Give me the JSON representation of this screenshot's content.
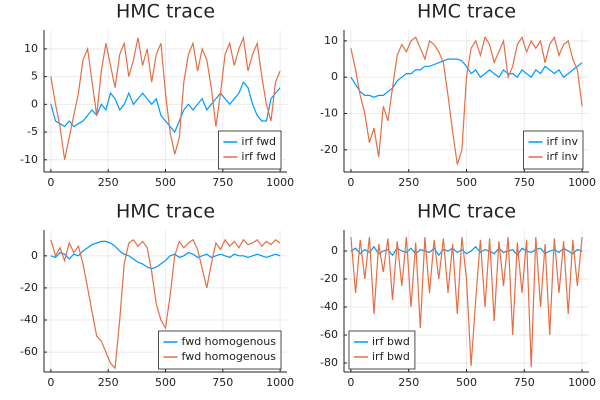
{
  "chart_data": [
    {
      "type": "line",
      "title": "HMC trace",
      "legend": "bottom-right",
      "grid": true,
      "x": [
        0,
        20,
        40,
        60,
        80,
        100,
        120,
        140,
        160,
        180,
        200,
        220,
        240,
        260,
        280,
        300,
        320,
        340,
        360,
        380,
        400,
        420,
        440,
        460,
        480,
        500,
        520,
        540,
        560,
        580,
        600,
        620,
        640,
        660,
        680,
        700,
        720,
        740,
        760,
        780,
        800,
        820,
        840,
        860,
        880,
        900,
        920,
        940,
        960,
        980,
        1000
      ],
      "xlim": [
        -30,
        1030
      ],
      "xticks": [
        0,
        250,
        500,
        750,
        1000
      ],
      "ylim": [
        -12.2,
        13.4
      ],
      "yticks": [
        -10,
        -5,
        0,
        5,
        10
      ],
      "series": [
        {
          "name": "irf fwd",
          "color": "#009af9",
          "values": [
            0,
            -3,
            -3.5,
            -4,
            -3,
            -4,
            -3.5,
            -3,
            -2,
            -1,
            -2,
            0,
            -1,
            2,
            1,
            -1,
            0,
            2,
            0,
            1,
            2,
            1,
            0,
            1,
            -2,
            -3,
            -4,
            -5,
            -3,
            -1,
            0,
            -1,
            0,
            1,
            -1,
            0,
            1,
            2,
            1,
            0,
            1,
            2,
            4,
            3,
            0,
            -2,
            -3,
            -3,
            1,
            2,
            3
          ]
        },
        {
          "name": "irf fwd",
          "color": "#e26f46",
          "values": [
            5,
            0,
            -4,
            -10,
            -6,
            -2,
            2,
            8,
            10,
            4,
            -2,
            6,
            11,
            7,
            3,
            9,
            11,
            5,
            8,
            12,
            7,
            10,
            4,
            9,
            11,
            2,
            -5,
            -9,
            -6,
            4,
            9,
            11,
            6,
            10,
            8,
            3,
            -4,
            2,
            9,
            11,
            7,
            10,
            12,
            6,
            9,
            11,
            5,
            0,
            -3,
            4,
            6
          ]
        }
      ]
    },
    {
      "type": "line",
      "title": "HMC trace",
      "legend": "bottom-right",
      "grid": true,
      "x": [
        0,
        20,
        40,
        60,
        80,
        100,
        120,
        140,
        160,
        180,
        200,
        220,
        240,
        260,
        280,
        300,
        320,
        340,
        360,
        380,
        400,
        420,
        440,
        460,
        480,
        500,
        520,
        540,
        560,
        580,
        600,
        620,
        640,
        660,
        680,
        700,
        720,
        740,
        760,
        780,
        800,
        820,
        840,
        860,
        880,
        900,
        920,
        940,
        960,
        980,
        1000
      ],
      "xlim": [
        -30,
        1030
      ],
      "xticks": [
        0,
        250,
        500,
        750,
        1000
      ],
      "ylim": [
        -26.1,
        13.0
      ],
      "yticks": [
        -20,
        -10,
        0,
        10
      ],
      "series": [
        {
          "name": "irf inv",
          "color": "#009af9",
          "values": [
            0,
            -2,
            -4,
            -5,
            -5,
            -5.5,
            -5,
            -5,
            -4,
            -3,
            -1,
            0,
            1,
            1,
            2,
            2,
            3,
            3,
            3.5,
            4,
            4.5,
            5,
            5,
            5,
            4.5,
            3,
            1,
            2,
            0,
            1,
            2,
            1,
            0,
            2,
            1,
            1,
            0,
            2,
            1,
            0,
            2,
            1,
            3,
            2,
            1,
            2,
            0,
            1,
            2,
            3,
            4
          ]
        },
        {
          "name": "irf inv",
          "color": "#e26f46",
          "values": [
            8,
            2,
            -5,
            -10,
            -18,
            -14,
            -22,
            -8,
            -12,
            -3,
            6,
            9,
            7,
            10,
            11,
            8,
            5,
            10,
            9,
            7,
            4,
            -5,
            -15,
            -24,
            -20,
            0,
            8,
            10,
            6,
            11,
            9,
            4,
            7,
            10,
            0,
            3,
            9,
            11,
            7,
            10,
            8,
            10,
            4,
            9,
            11,
            6,
            9,
            10,
            5,
            2,
            -8
          ]
        }
      ]
    },
    {
      "type": "line",
      "title": "HMC trace",
      "legend": "bottom-right",
      "grid": true,
      "x": [
        0,
        20,
        40,
        60,
        80,
        100,
        120,
        140,
        160,
        180,
        200,
        220,
        240,
        260,
        280,
        300,
        320,
        340,
        360,
        380,
        400,
        420,
        440,
        460,
        480,
        500,
        520,
        540,
        560,
        580,
        600,
        620,
        640,
        660,
        680,
        700,
        720,
        740,
        760,
        780,
        800,
        820,
        840,
        860,
        880,
        900,
        920,
        940,
        960,
        980,
        1000
      ],
      "xlim": [
        -30,
        1030
      ],
      "xticks": [
        0,
        250,
        500,
        750,
        1000
      ],
      "ylim": [
        -72.4,
        16.1
      ],
      "yticks": [
        -60,
        -40,
        -20,
        0
      ],
      "series": [
        {
          "name": "fwd homogenous",
          "color": "#009af9",
          "values": [
            0,
            -1,
            2,
            1,
            -2,
            1,
            0,
            3,
            5,
            7,
            8,
            9,
            9,
            8,
            6,
            3,
            1,
            0,
            -2,
            -4,
            -5,
            -7,
            -8,
            -7,
            -5,
            -3,
            0,
            1,
            -1,
            0,
            2,
            1,
            -1,
            0,
            1,
            -1,
            0,
            1,
            0,
            -1,
            1,
            0,
            0,
            -1,
            0,
            1,
            0,
            -1,
            0,
            1,
            0
          ]
        },
        {
          "name": "fwd homogenous",
          "color": "#e26f46",
          "values": [
            10,
            0,
            5,
            -3,
            8,
            2,
            6,
            -5,
            -20,
            -35,
            -50,
            -53,
            -60,
            -67,
            -70,
            -40,
            -5,
            8,
            10,
            6,
            9,
            5,
            -10,
            -30,
            -40,
            -45,
            -25,
            0,
            9,
            5,
            8,
            10,
            4,
            -8,
            -20,
            -5,
            8,
            4,
            10,
            6,
            9,
            5,
            10,
            7,
            8,
            10,
            6,
            9,
            7,
            10,
            8
          ]
        }
      ]
    },
    {
      "type": "line",
      "title": "HMC trace",
      "legend": "bottom-left",
      "grid": true,
      "x": [
        0,
        20,
        40,
        60,
        80,
        100,
        120,
        140,
        160,
        180,
        200,
        220,
        240,
        260,
        280,
        300,
        320,
        340,
        360,
        380,
        400,
        420,
        440,
        460,
        480,
        500,
        520,
        540,
        560,
        580,
        600,
        620,
        640,
        660,
        680,
        700,
        720,
        740,
        760,
        780,
        800,
        820,
        840,
        860,
        880,
        900,
        920,
        940,
        960,
        980,
        1000
      ],
      "xlim": [
        -30,
        1030
      ],
      "xticks": [
        0,
        250,
        500,
        750,
        1000
      ],
      "ylim": [
        -86.4,
        15
      ],
      "yticks": [
        -80,
        -60,
        -40,
        -20,
        0
      ],
      "series": [
        {
          "name": "irf bwd",
          "color": "#009af9",
          "values": [
            0,
            2,
            -2,
            1,
            -1,
            3,
            -2,
            0,
            1,
            -3,
            2,
            0,
            -1,
            2,
            -2,
            1,
            0,
            -1,
            2,
            -3,
            1,
            0,
            2,
            -1,
            1,
            -2,
            0,
            3,
            -1,
            1,
            0,
            -2,
            2,
            -1,
            0,
            1,
            -3,
            2,
            0,
            -1,
            1,
            2,
            -2,
            0,
            1,
            -1,
            2,
            0,
            -2,
            1,
            0
          ]
        },
        {
          "name": "irf bwd",
          "color": "#e26f46",
          "values": [
            10,
            -30,
            8,
            -20,
            10,
            -45,
            5,
            -15,
            9,
            -35,
            7,
            -25,
            10,
            -40,
            6,
            -55,
            10,
            -30,
            8,
            -20,
            9,
            -30,
            5,
            -45,
            10,
            -20,
            -82,
            -35,
            8,
            -40,
            9,
            -50,
            7,
            -25,
            10,
            -60,
            6,
            -30,
            8,
            -83,
            10,
            -40,
            5,
            -60,
            9,
            -30,
            7,
            -45,
            8,
            -25,
            10
          ]
        }
      ]
    }
  ]
}
